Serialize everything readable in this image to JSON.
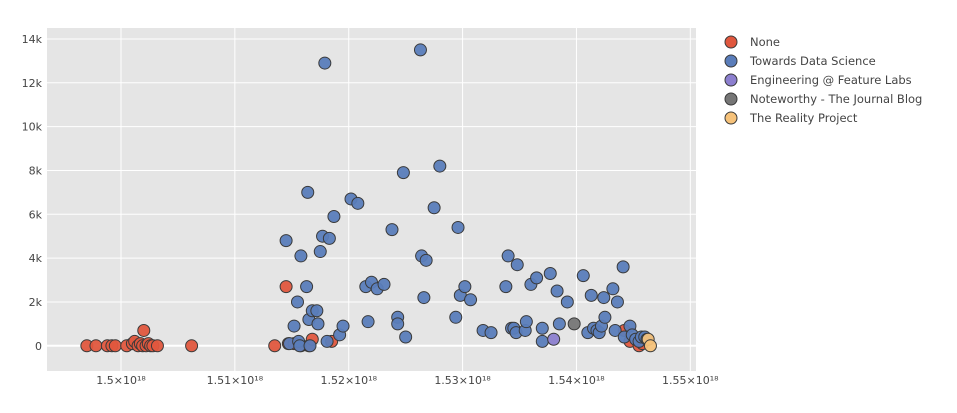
{
  "chart_data": {
    "type": "scatter",
    "title": "",
    "xlabel": "",
    "ylabel": "",
    "xlim": [
      1.4935e+18,
      1.5505e+18
    ],
    "ylim": [
      -1150,
      14500
    ],
    "grid": true,
    "legend_placement": "top-right outside",
    "x_ticks": [
      {
        "value": 1.5e+18,
        "label": "1.5×10¹⁸"
      },
      {
        "value": 1.51e+18,
        "label": "1.51×10¹⁸"
      },
      {
        "value": 1.52e+18,
        "label": "1.52×10¹⁸"
      },
      {
        "value": 1.53e+18,
        "label": "1.53×10¹⁸"
      },
      {
        "value": 1.54e+18,
        "label": "1.54×10¹⁸"
      },
      {
        "value": 1.55e+18,
        "label": "1.55×10¹⁸"
      }
    ],
    "y_ticks": [
      {
        "value": 0,
        "label": "0"
      },
      {
        "value": 2000,
        "label": "2k"
      },
      {
        "value": 4000,
        "label": "4k"
      },
      {
        "value": 6000,
        "label": "6k"
      },
      {
        "value": 8000,
        "label": "8k"
      },
      {
        "value": 10000,
        "label": "10k"
      },
      {
        "value": 12000,
        "label": "12k"
      },
      {
        "value": 14000,
        "label": "14k"
      }
    ],
    "series": [
      {
        "name": "None",
        "color": "#e0573e",
        "points": [
          [
            1.497e+18,
            0
          ],
          [
            1.4978e+18,
            0
          ],
          [
            1.4988e+18,
            0
          ],
          [
            1.4992e+18,
            0
          ],
          [
            1.4995e+18,
            0
          ],
          [
            1.5005e+18,
            0
          ],
          [
            1.501e+18,
            100
          ],
          [
            1.5012e+18,
            200
          ],
          [
            1.5015e+18,
            0
          ],
          [
            1.5017e+18,
            100
          ],
          [
            1.5019e+18,
            0
          ],
          [
            1.502e+18,
            700
          ],
          [
            1.5022e+18,
            0
          ],
          [
            1.5024e+18,
            100
          ],
          [
            1.5026e+18,
            0
          ],
          [
            1.5028e+18,
            0
          ],
          [
            1.5032e+18,
            0
          ],
          [
            1.5062e+18,
            0
          ],
          [
            1.5135e+18,
            0
          ],
          [
            1.5145e+18,
            2700
          ],
          [
            1.5147e+18,
            100
          ],
          [
            1.5152e+18,
            100
          ],
          [
            1.5158e+18,
            0
          ],
          [
            1.5165e+18,
            0
          ],
          [
            1.5168e+18,
            300
          ],
          [
            1.5185e+18,
            200
          ],
          [
            1.5442e+18,
            700
          ],
          [
            1.5447e+18,
            200
          ],
          [
            1.5455e+18,
            0
          ],
          [
            1.5458e+18,
            100
          ]
        ]
      },
      {
        "name": "Towards Data Science",
        "color": "#5a7dba",
        "points": [
          [
            1.5145e+18,
            4800
          ],
          [
            1.5148e+18,
            100
          ],
          [
            1.5152e+18,
            900
          ],
          [
            1.5155e+18,
            2000
          ],
          [
            1.5156e+18,
            200
          ],
          [
            1.5157e+18,
            0
          ],
          [
            1.5158e+18,
            4100
          ],
          [
            1.5163e+18,
            2700
          ],
          [
            1.5164e+18,
            7000
          ],
          [
            1.5165e+18,
            1200
          ],
          [
            1.5166e+18,
            0
          ],
          [
            1.5168e+18,
            1600
          ],
          [
            1.5172e+18,
            1600
          ],
          [
            1.5173e+18,
            1000
          ],
          [
            1.5175e+18,
            4300
          ],
          [
            1.5177e+18,
            5000
          ],
          [
            1.5179e+18,
            12900
          ],
          [
            1.5181e+18,
            200
          ],
          [
            1.5183e+18,
            4900
          ],
          [
            1.5187e+18,
            5900
          ],
          [
            1.5192e+18,
            500
          ],
          [
            1.5195e+18,
            900
          ],
          [
            1.5202e+18,
            6700
          ],
          [
            1.5208e+18,
            6500
          ],
          [
            1.5215e+18,
            2700
          ],
          [
            1.5217e+18,
            1100
          ],
          [
            1.522e+18,
            2900
          ],
          [
            1.5225e+18,
            2600
          ],
          [
            1.5231e+18,
            2800
          ],
          [
            1.5238e+18,
            5300
          ],
          [
            1.5243e+18,
            1300
          ],
          [
            1.5243e+18,
            1000
          ],
          [
            1.5248e+18,
            7900
          ],
          [
            1.525e+18,
            400
          ],
          [
            1.5263e+18,
            13500
          ],
          [
            1.5264e+18,
            4100
          ],
          [
            1.5266e+18,
            2200
          ],
          [
            1.5268e+18,
            3900
          ],
          [
            1.5275e+18,
            6300
          ],
          [
            1.528e+18,
            8200
          ],
          [
            1.5294e+18,
            1300
          ],
          [
            1.5296e+18,
            5400
          ],
          [
            1.5298e+18,
            2300
          ],
          [
            1.5302e+18,
            2700
          ],
          [
            1.5307e+18,
            2100
          ],
          [
            1.5318e+18,
            700
          ],
          [
            1.5325e+18,
            600
          ],
          [
            1.5338e+18,
            2700
          ],
          [
            1.534e+18,
            4100
          ],
          [
            1.5343e+18,
            800
          ],
          [
            1.5345e+18,
            800
          ],
          [
            1.5347e+18,
            600
          ],
          [
            1.5348e+18,
            3700
          ],
          [
            1.5355e+18,
            700
          ],
          [
            1.5356e+18,
            1100
          ],
          [
            1.536e+18,
            2800
          ],
          [
            1.5365e+18,
            3100
          ],
          [
            1.537e+18,
            800
          ],
          [
            1.537e+18,
            200
          ],
          [
            1.5377e+18,
            3300
          ],
          [
            1.5383e+18,
            2500
          ],
          [
            1.5385e+18,
            1000
          ],
          [
            1.5392e+18,
            2000
          ],
          [
            1.5406e+18,
            3200
          ],
          [
            1.541e+18,
            600
          ],
          [
            1.5413e+18,
            2300
          ],
          [
            1.5415e+18,
            800
          ],
          [
            1.5418e+18,
            700
          ],
          [
            1.542e+18,
            600
          ],
          [
            1.5422e+18,
            900
          ],
          [
            1.5424e+18,
            2200
          ],
          [
            1.5425e+18,
            1300
          ],
          [
            1.5432e+18,
            2600
          ],
          [
            1.5434e+18,
            700
          ],
          [
            1.5436e+18,
            2000
          ],
          [
            1.5441e+18,
            3600
          ],
          [
            1.5442e+18,
            400
          ],
          [
            1.5447e+18,
            900
          ],
          [
            1.5449e+18,
            500
          ],
          [
            1.5452e+18,
            300
          ],
          [
            1.5455e+18,
            200
          ],
          [
            1.5457e+18,
            400
          ],
          [
            1.546e+18,
            400
          ],
          [
            1.5462e+18,
            300
          ]
        ]
      },
      {
        "name": "Engineering @ Feature Labs",
        "color": "#8c7fcf",
        "points": [
          [
            1.538e+18,
            300
          ]
        ]
      },
      {
        "name": "Noteworthy - The Journal Blog",
        "color": "#767676",
        "points": [
          [
            1.5398e+18,
            1000
          ]
        ]
      },
      {
        "name": "The Reality Project",
        "color": "#f6c27a",
        "points": [
          [
            1.5463e+18,
            300
          ],
          [
            1.5465e+18,
            0
          ]
        ]
      }
    ]
  }
}
